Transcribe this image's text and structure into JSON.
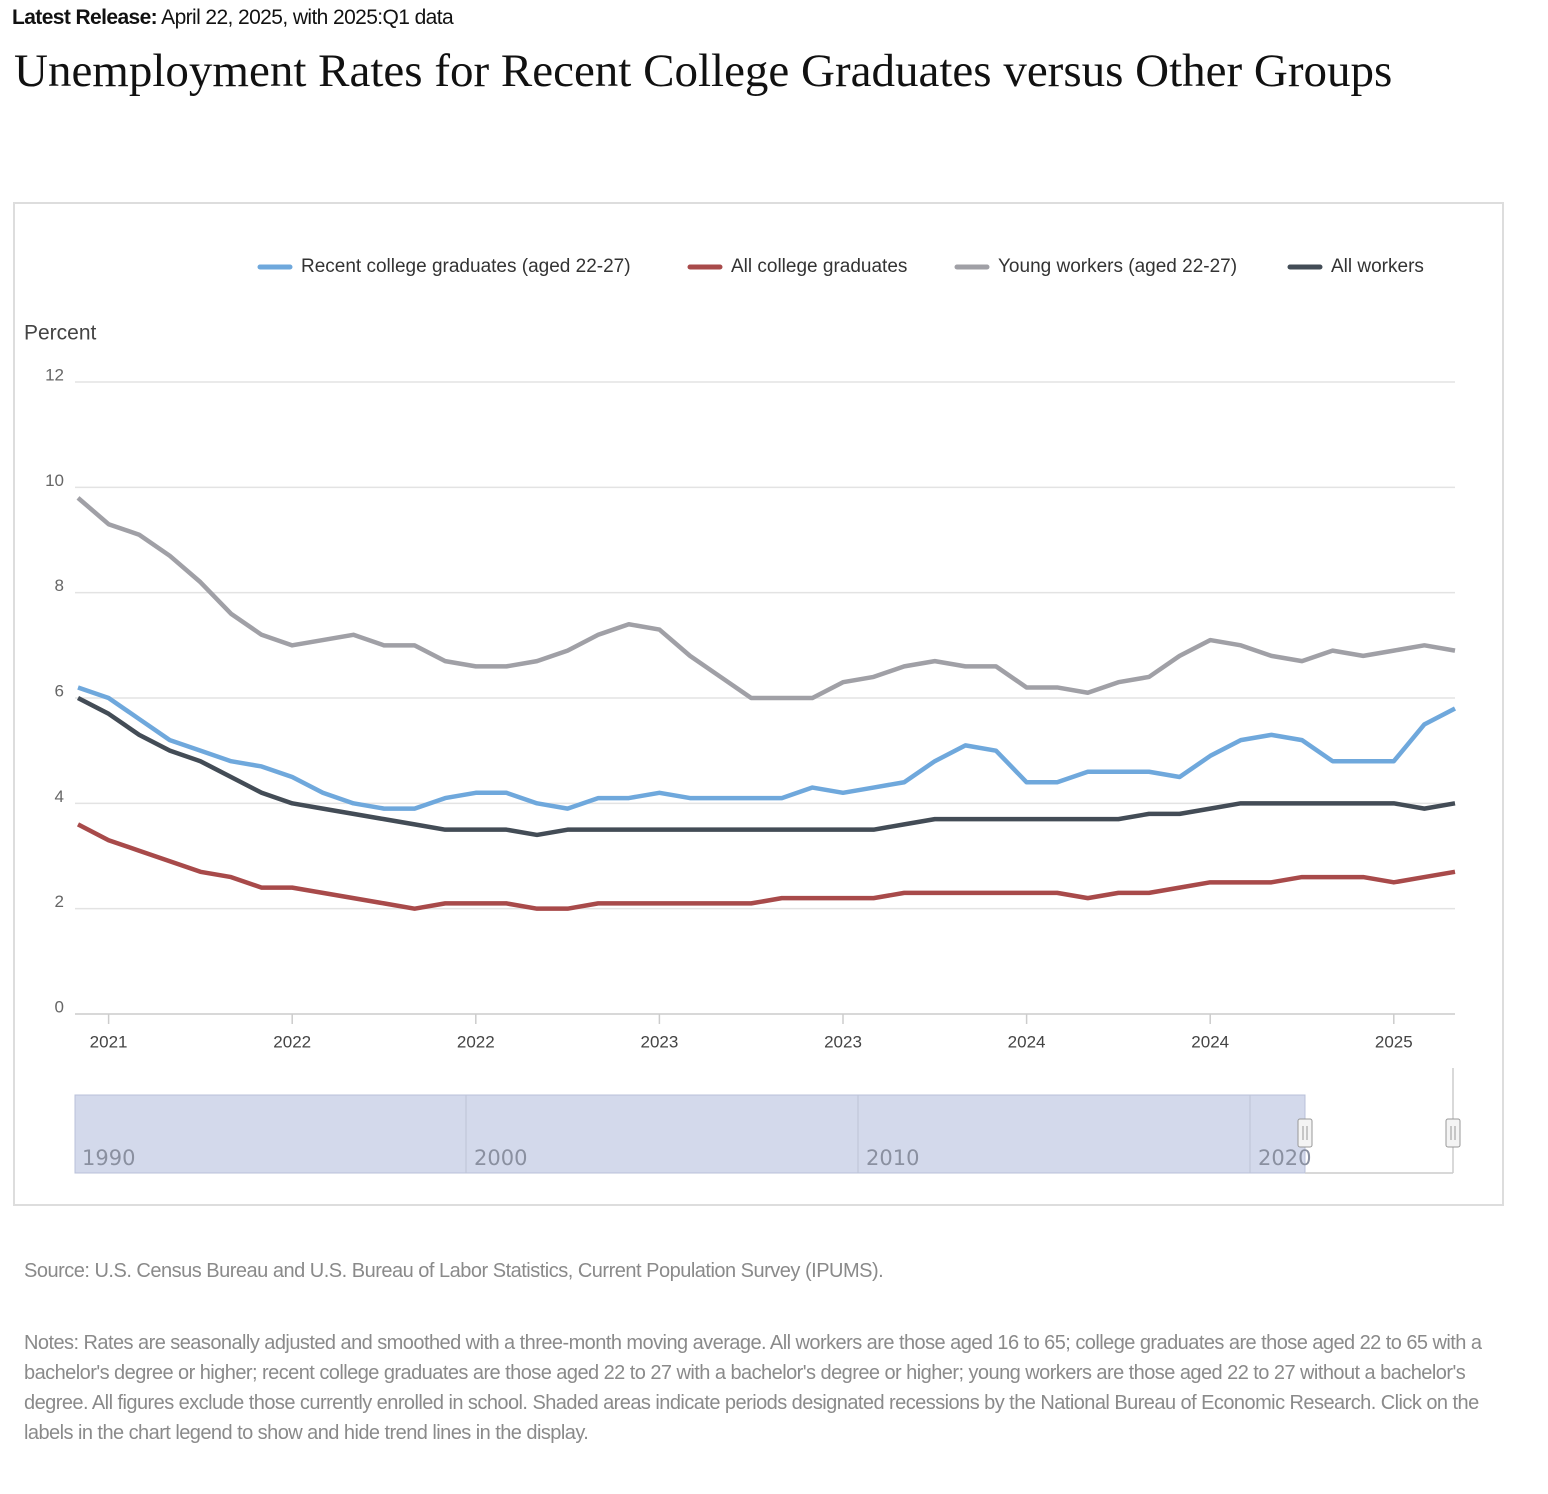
{
  "header": {
    "release_label": "Latest Release:",
    "release_text": "April 22, 2025, with 2025:Q1 data"
  },
  "chart_data": {
    "type": "line",
    "title": "Unemployment Rates for Recent College Graduates versus Other Groups",
    "y_label": "Percent",
    "x": [
      0,
      1,
      2,
      3,
      4,
      5,
      6,
      7,
      8,
      9,
      10,
      11,
      12,
      13,
      14,
      15,
      16,
      17,
      18,
      19,
      20,
      21,
      22,
      23,
      24,
      25,
      26,
      27,
      28,
      29,
      30,
      31,
      32,
      33,
      34,
      35,
      36,
      37,
      38,
      39,
      40,
      41,
      42,
      43,
      44,
      45
    ],
    "xlim": [
      0,
      45
    ],
    "xticks": [
      {
        "value": 1,
        "label": "2021"
      },
      {
        "value": 7,
        "label": "2022"
      },
      {
        "value": 13,
        "label": "2022"
      },
      {
        "value": 19,
        "label": "2023"
      },
      {
        "value": 25,
        "label": "2023"
      },
      {
        "value": 31,
        "label": "2024"
      },
      {
        "value": 37,
        "label": "2024"
      },
      {
        "value": 43,
        "label": "2025"
      }
    ],
    "ylim": [
      0,
      12
    ],
    "yticks": [
      0,
      2,
      4,
      6,
      8,
      10,
      12
    ],
    "grid": true,
    "legend": "top",
    "series": [
      {
        "name": "Recent college graduates (aged 22-27)",
        "color": "#6fa8dc",
        "values": [
          6.2,
          6.0,
          5.6,
          5.2,
          5.0,
          4.8,
          4.7,
          4.5,
          4.2,
          4.0,
          3.9,
          3.9,
          4.1,
          4.2,
          4.2,
          4.0,
          3.9,
          4.1,
          4.1,
          4.2,
          4.1,
          4.1,
          4.1,
          4.1,
          4.3,
          4.2,
          4.3,
          4.4,
          4.8,
          5.1,
          5.0,
          4.4,
          4.4,
          4.6,
          4.6,
          4.6,
          4.5,
          4.9,
          5.2,
          5.3,
          5.2,
          4.8,
          4.8,
          4.8,
          5.5,
          5.8
        ]
      },
      {
        "name": "All college graduates",
        "color": "#a84a4a",
        "values": [
          3.6,
          3.3,
          3.1,
          2.9,
          2.7,
          2.6,
          2.4,
          2.4,
          2.3,
          2.2,
          2.1,
          2.0,
          2.1,
          2.1,
          2.1,
          2.0,
          2.0,
          2.1,
          2.1,
          2.1,
          2.1,
          2.1,
          2.1,
          2.2,
          2.2,
          2.2,
          2.2,
          2.3,
          2.3,
          2.3,
          2.3,
          2.3,
          2.3,
          2.2,
          2.3,
          2.3,
          2.4,
          2.5,
          2.5,
          2.5,
          2.6,
          2.6,
          2.6,
          2.5,
          2.6,
          2.7
        ]
      },
      {
        "name": "Young workers (aged 22-27)",
        "color": "#a0a0a6",
        "values": [
          9.8,
          9.3,
          9.1,
          8.7,
          8.2,
          7.6,
          7.2,
          7.0,
          7.1,
          7.2,
          7.0,
          7.0,
          6.7,
          6.6,
          6.6,
          6.7,
          6.9,
          7.2,
          7.4,
          7.3,
          6.8,
          6.4,
          6.0,
          6.0,
          6.0,
          6.3,
          6.4,
          6.6,
          6.7,
          6.6,
          6.6,
          6.2,
          6.2,
          6.1,
          6.3,
          6.4,
          6.8,
          7.1,
          7.0,
          6.8,
          6.7,
          6.9,
          6.8,
          6.9,
          7.0,
          6.9
        ]
      },
      {
        "name": "All workers",
        "color": "#434c56",
        "values": [
          6.0,
          5.7,
          5.3,
          5.0,
          4.8,
          4.5,
          4.2,
          4.0,
          3.9,
          3.8,
          3.7,
          3.6,
          3.5,
          3.5,
          3.5,
          3.4,
          3.5,
          3.5,
          3.5,
          3.5,
          3.5,
          3.5,
          3.5,
          3.5,
          3.5,
          3.5,
          3.5,
          3.6,
          3.7,
          3.7,
          3.7,
          3.7,
          3.7,
          3.7,
          3.7,
          3.8,
          3.8,
          3.9,
          4.0,
          4.0,
          4.0,
          4.0,
          4.0,
          4.0,
          3.9,
          4.0
        ]
      }
    ],
    "navigator_labels": [
      "1990",
      "2000",
      "2010",
      "2020"
    ]
  },
  "footer": {
    "source": "Source: U.S. Census Bureau and U.S. Bureau of Labor Statistics, Current Population Survey (IPUMS).",
    "notes": "Notes: Rates are seasonally adjusted and smoothed with a three-month moving average. All workers are those aged 16 to 65; college graduates are those aged 22 to 65 with a bachelor's degree or higher; recent college graduates are those aged 22 to 27 with a bachelor's degree or higher; young workers are those aged 22 to 27 without a bachelor's degree. All figures exclude those currently enrolled in school. Shaded areas indicate periods designated recessions by the National Bureau of Economic Research. Click on the labels in the chart legend to show and hide trend lines in the display."
  }
}
